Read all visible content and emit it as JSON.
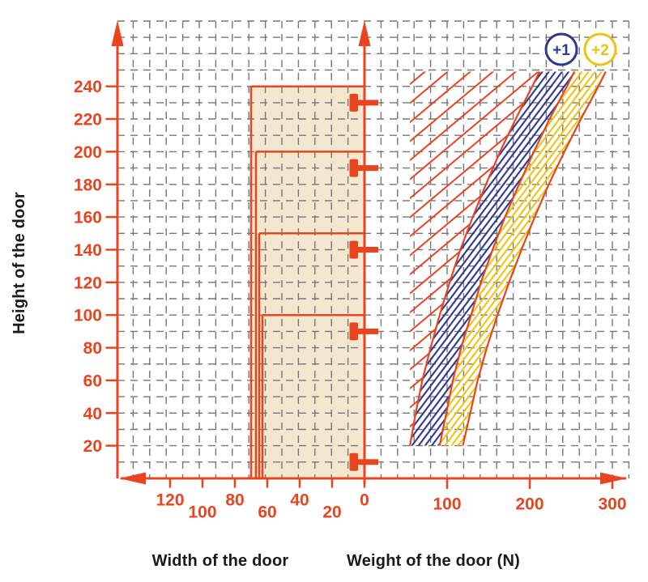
{
  "labels": {
    "height_axis": "Height of the door",
    "width_axis": "Width of the door",
    "weight_axis": "Weight of the door (N)"
  },
  "colors": {
    "accent_orange": "#e9441f",
    "grid_gray": "#767676",
    "region_beige": "#f3e8cf",
    "band_navy": "#2b3990",
    "band_gold": "#eec312",
    "text_black": "#1a1a1a"
  },
  "chart_data": {
    "type": "area",
    "title": "",
    "y_axis": {
      "label": "Height of the door",
      "ticks": [
        240,
        220,
        200,
        180,
        160,
        140,
        120,
        100,
        80,
        60,
        40,
        20
      ],
      "range": [
        0,
        282
      ],
      "grid": true
    },
    "x_axis_width": {
      "label": "Width of the door",
      "ticks": [
        120,
        100,
        80,
        60,
        40,
        20,
        0
      ],
      "direction": "increases-leftward",
      "range": [
        0,
        150
      ]
    },
    "x_axis_weight": {
      "label": "Weight of the door (N)",
      "ticks": [
        100,
        200,
        300
      ],
      "direction": "increases-rightward",
      "range": [
        0,
        315
      ]
    },
    "door_width_steps": [
      {
        "height_top": 240,
        "width": 70
      },
      {
        "height_top": 200,
        "width": 67
      },
      {
        "height_top": 150,
        "width": 65
      },
      {
        "height_top": 100,
        "width": 63
      }
    ],
    "hinge_marker_heights": [
      230,
      190,
      140,
      90,
      10
    ],
    "zones": {
      "top_height": 249,
      "bottom_height": 20,
      "base_zone": {
        "hatch": "orange-diagonal",
        "min_weight": 55
      },
      "curves_weight_vs_height": {
        "c1": [
          [
            20,
            55
          ],
          [
            40,
            62
          ],
          [
            60,
            70
          ],
          [
            80,
            80
          ],
          [
            100,
            91
          ],
          [
            120,
            103
          ],
          [
            140,
            116
          ],
          [
            160,
            131
          ],
          [
            180,
            147
          ],
          [
            200,
            164
          ],
          [
            220,
            183
          ],
          [
            240,
            203
          ],
          [
            249,
            212
          ]
        ],
        "c2": [
          [
            20,
            91
          ],
          [
            40,
            99
          ],
          [
            60,
            107
          ],
          [
            80,
            117
          ],
          [
            100,
            129
          ],
          [
            120,
            141
          ],
          [
            140,
            155
          ],
          [
            160,
            170
          ],
          [
            180,
            187
          ],
          [
            200,
            205
          ],
          [
            220,
            224
          ],
          [
            240,
            245
          ],
          [
            249,
            254
          ]
        ],
        "c3": [
          [
            20,
            119
          ],
          [
            40,
            128
          ],
          [
            60,
            137
          ],
          [
            80,
            148
          ],
          [
            100,
            161
          ],
          [
            120,
            175
          ],
          [
            140,
            190
          ],
          [
            160,
            206
          ],
          [
            180,
            223
          ],
          [
            200,
            242
          ],
          [
            220,
            262
          ],
          [
            240,
            283
          ],
          [
            249,
            292
          ]
        ]
      },
      "bands": [
        {
          "badge": "+1",
          "hatch": "navy-diagonal",
          "between": [
            "c1",
            "c2"
          ]
        },
        {
          "badge": "+2",
          "hatch": "gold-diagonal",
          "between": [
            "c2",
            "c3"
          ]
        }
      ]
    },
    "badges": [
      {
        "label": "+1",
        "color": "#2b3990"
      },
      {
        "label": "+2",
        "color": "#eec312"
      }
    ]
  }
}
